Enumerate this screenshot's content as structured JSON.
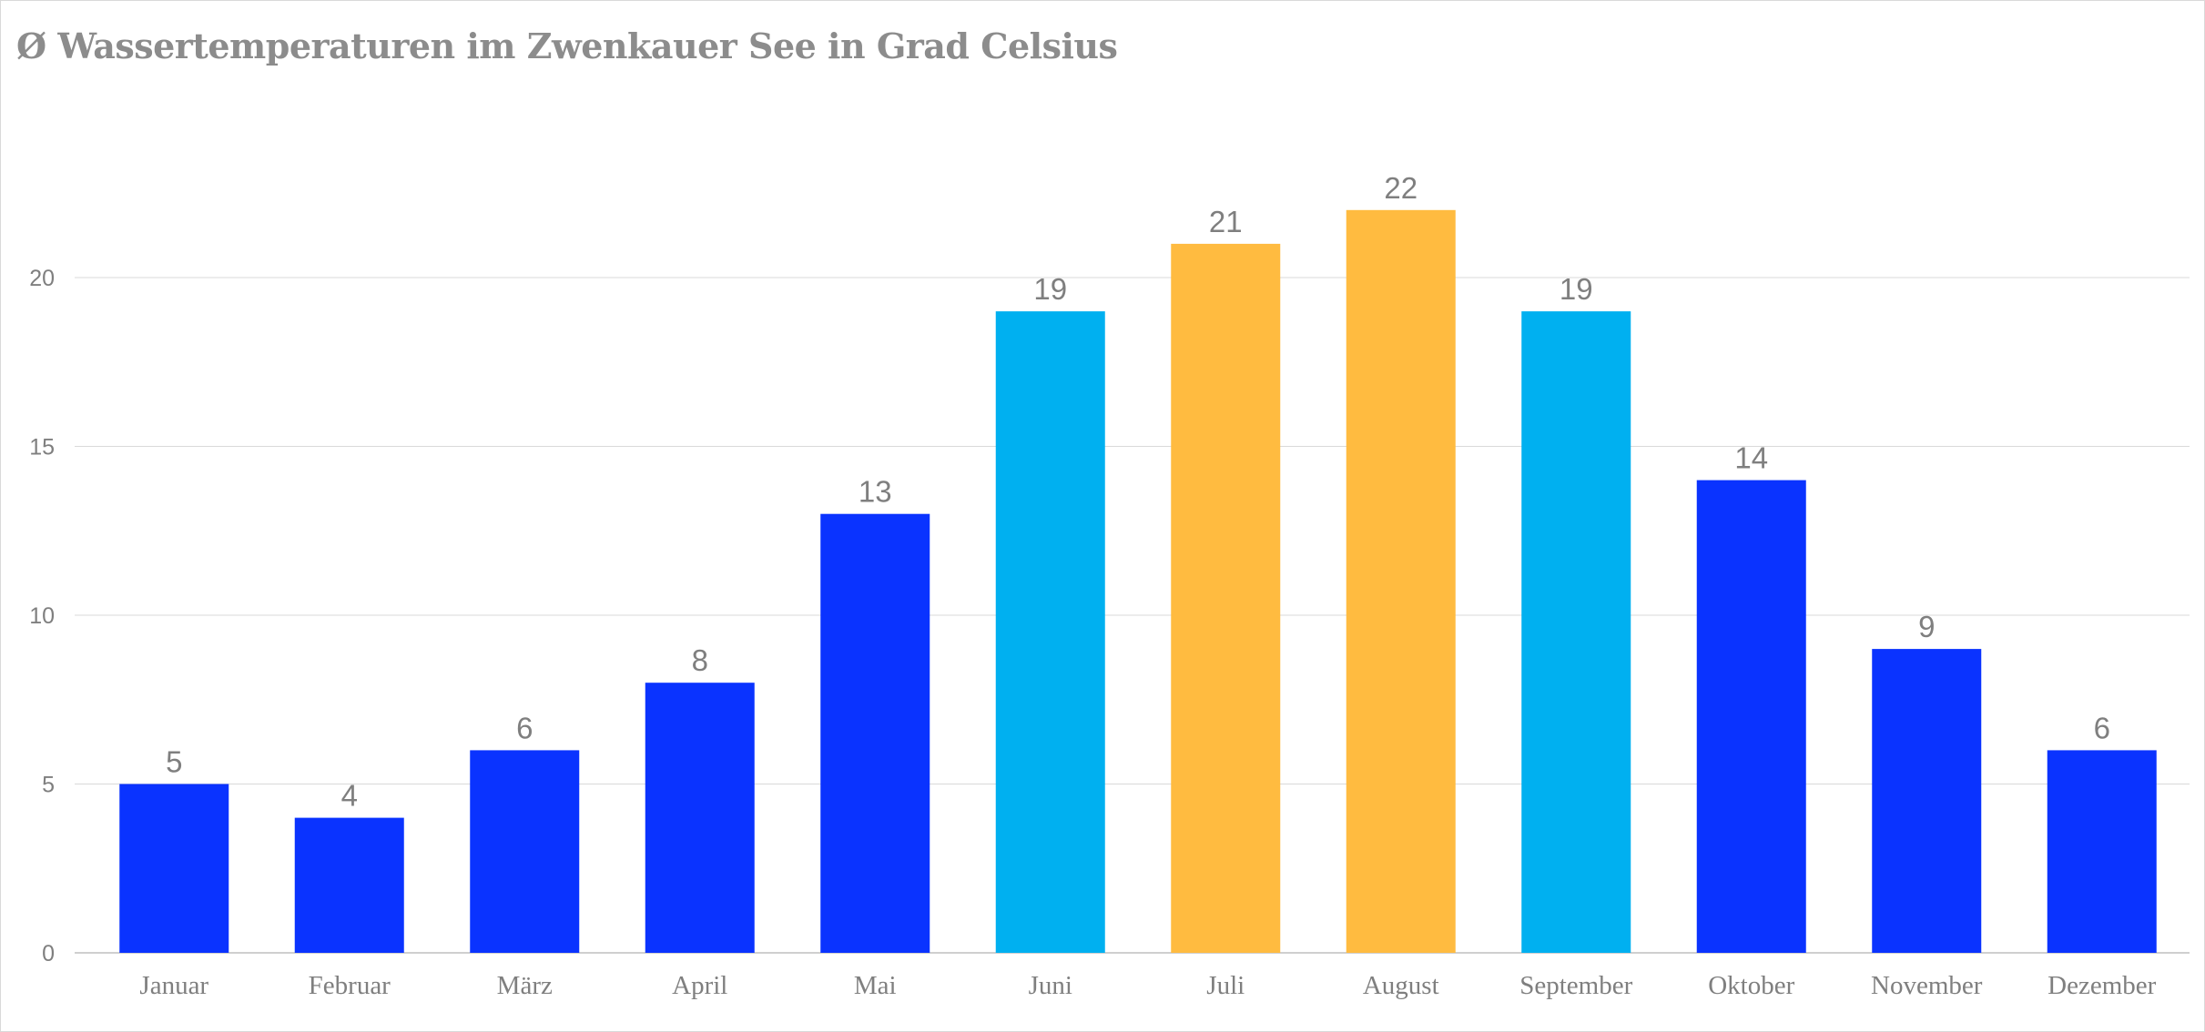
{
  "chart_data": {
    "type": "bar",
    "title": "Ø Wassertemperaturen im Zwenkauer See in Grad Celsius",
    "xlabel": "",
    "ylabel": "",
    "categories": [
      "Januar",
      "Februar",
      "März",
      "April",
      "Mai",
      "Juni",
      "Juli",
      "August",
      "September",
      "Oktober",
      "November",
      "Dezember"
    ],
    "values": [
      5,
      4,
      6,
      8,
      13,
      19,
      21,
      22,
      19,
      14,
      9,
      6
    ],
    "data_labels": [
      "5",
      "4",
      "6",
      "8",
      "13",
      "19",
      "21",
      "22",
      "19",
      "14",
      "9",
      "6"
    ],
    "bar_colors": [
      "#0a33ff",
      "#0a33ff",
      "#0a33ff",
      "#0a33ff",
      "#0a33ff",
      "#00b0f0",
      "#ffbb40",
      "#ffbb40",
      "#00b0f0",
      "#0a33ff",
      "#0a33ff",
      "#0a33ff"
    ],
    "ylim": [
      0,
      22
    ],
    "yticks": [
      0,
      5,
      10,
      15,
      20
    ],
    "grid": true,
    "legend": "none"
  },
  "colors": {
    "text": "#7f7f7f",
    "gridline": "#d9d9d9"
  }
}
